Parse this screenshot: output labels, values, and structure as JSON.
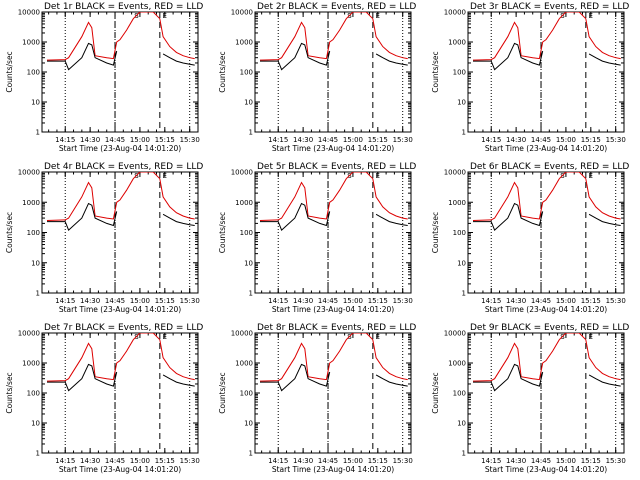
{
  "figure": {
    "x_tick_labels": [
      "14:15",
      "14:30",
      "14:45",
      "15:00",
      "15:15",
      "15:30"
    ],
    "y_tick_labels": [
      "1",
      "10",
      "100",
      "1000",
      "10000"
    ],
    "xlabel": "Start Time (23-Aug-04 14:01:20)",
    "ylabel": "Counts/sec"
  },
  "chart_data": [
    {
      "type": "line",
      "title": "Det 1r BLACK = Events, RED = LLD",
      "xlabel": "Start Time (23-Aug-04 14:01:20)",
      "ylabel": "Counts/sec",
      "yscale": "log",
      "ylim": [
        1,
        10000
      ],
      "x_ticks": [
        "14:15",
        "14:30",
        "14:45",
        "15:00",
        "15:15",
        "15:30"
      ],
      "vlines_dotted": [
        "14:15",
        "14:45",
        "15:30"
      ],
      "vlines_dashed": [
        "14:45",
        "15:12"
      ],
      "markers": [
        "S",
        "E"
      ],
      "x": [
        "14:04",
        "14:15",
        "14:17",
        "14:25",
        "14:29",
        "14:31",
        "14:33",
        "14:40",
        "14:44",
        "14:46",
        "14:48",
        "14:52",
        "14:56",
        "15:00",
        "15:04",
        "15:08",
        "15:12",
        "15:14",
        "15:18",
        "15:22",
        "15:26",
        "15:30",
        "15:33"
      ],
      "series": [
        {
          "name": "BLACK = Events",
          "color": "#000000",
          "values": [
            230,
            230,
            120,
            300,
            900,
            800,
            300,
            200,
            170,
            500,
            "",
            "",
            "",
            "",
            "",
            "",
            "",
            400,
            300,
            230,
            200,
            180,
            170
          ]
        },
        {
          "name": "RED = LLD",
          "color": "#dd0000",
          "values": [
            250,
            260,
            300,
            1500,
            4500,
            3000,
            350,
            300,
            280,
            1000,
            1200,
            2500,
            6000,
            10000,
            10000,
            10000,
            6000,
            1500,
            700,
            450,
            350,
            300,
            280
          ]
        }
      ]
    },
    {
      "type": "line",
      "title": "Det 2r BLACK = Events, RED = LLD",
      "xlabel": "Start Time (23-Aug-04 14:01:20)",
      "ylabel": "Counts/sec",
      "yscale": "log",
      "ylim": [
        1,
        10000
      ],
      "x_ticks": [
        "14:15",
        "14:30",
        "14:45",
        "15:00",
        "15:15",
        "15:30"
      ],
      "vlines_dotted": [
        "14:15",
        "14:45",
        "15:30"
      ],
      "vlines_dashed": [
        "14:45",
        "15:12"
      ],
      "markers": [
        "S",
        "E"
      ],
      "x": [
        "14:04",
        "14:15",
        "14:17",
        "14:25",
        "14:29",
        "14:31",
        "14:33",
        "14:40",
        "14:44",
        "14:46",
        "14:48",
        "14:52",
        "14:56",
        "15:00",
        "15:04",
        "15:08",
        "15:12",
        "15:14",
        "15:18",
        "15:22",
        "15:26",
        "15:30",
        "15:33"
      ],
      "series": [
        {
          "name": "BLACK = Events",
          "color": "#000000",
          "values": [
            230,
            230,
            120,
            300,
            900,
            800,
            300,
            200,
            170,
            500,
            "",
            "",
            "",
            "",
            "",
            "",
            "",
            400,
            300,
            230,
            200,
            180,
            170
          ]
        },
        {
          "name": "RED = LLD",
          "color": "#dd0000",
          "values": [
            250,
            260,
            300,
            1500,
            4500,
            3000,
            350,
            300,
            280,
            1000,
            1200,
            2500,
            6000,
            10000,
            10000,
            10000,
            6000,
            1500,
            700,
            450,
            350,
            300,
            280
          ]
        }
      ]
    },
    {
      "type": "line",
      "title": "Det 3r BLACK = Events, RED = LLD",
      "xlabel": "Start Time (23-Aug-04 14:01:20)",
      "ylabel": "Counts/sec",
      "yscale": "log",
      "ylim": [
        1,
        10000
      ],
      "x_ticks": [
        "14:15",
        "14:30",
        "14:45",
        "15:00",
        "15:15",
        "15:30"
      ],
      "vlines_dotted": [
        "14:15",
        "14:45",
        "15:30"
      ],
      "vlines_dashed": [
        "14:45",
        "15:12"
      ],
      "markers": [
        "S",
        "E"
      ],
      "x": [
        "14:04",
        "14:15",
        "14:17",
        "14:25",
        "14:29",
        "14:31",
        "14:33",
        "14:40",
        "14:44",
        "14:46",
        "14:48",
        "14:52",
        "14:56",
        "15:00",
        "15:04",
        "15:08",
        "15:12",
        "15:14",
        "15:18",
        "15:22",
        "15:26",
        "15:30",
        "15:33"
      ],
      "series": [
        {
          "name": "BLACK = Events",
          "color": "#000000",
          "values": [
            230,
            230,
            120,
            300,
            900,
            800,
            300,
            200,
            170,
            500,
            "",
            "",
            "",
            "",
            "",
            "",
            "",
            400,
            300,
            230,
            200,
            180,
            170
          ]
        },
        {
          "name": "RED = LLD",
          "color": "#dd0000",
          "values": [
            250,
            260,
            300,
            1500,
            4500,
            3000,
            350,
            300,
            280,
            1000,
            1200,
            2500,
            6000,
            10000,
            10000,
            10000,
            6000,
            1500,
            700,
            450,
            350,
            300,
            280
          ]
        }
      ]
    },
    {
      "type": "line",
      "title": "Det 4r BLACK = Events, RED = LLD",
      "xlabel": "Start Time (23-Aug-04 14:01:20)",
      "ylabel": "Counts/sec",
      "yscale": "log",
      "ylim": [
        1,
        10000
      ],
      "x_ticks": [
        "14:15",
        "14:30",
        "14:45",
        "15:00",
        "15:15",
        "15:30"
      ],
      "vlines_dotted": [
        "14:15",
        "14:45",
        "15:30"
      ],
      "vlines_dashed": [
        "14:45",
        "15:12"
      ],
      "markers": [
        "S",
        "E"
      ],
      "x": [
        "14:04",
        "14:15",
        "14:17",
        "14:25",
        "14:29",
        "14:31",
        "14:33",
        "14:40",
        "14:44",
        "14:46",
        "14:48",
        "14:52",
        "14:56",
        "15:00",
        "15:04",
        "15:08",
        "15:12",
        "15:14",
        "15:18",
        "15:22",
        "15:26",
        "15:30",
        "15:33"
      ],
      "series": [
        {
          "name": "BLACK = Events",
          "color": "#000000",
          "values": [
            230,
            230,
            120,
            300,
            900,
            800,
            300,
            200,
            170,
            500,
            "",
            "",
            "",
            "",
            "",
            "",
            "",
            400,
            300,
            230,
            200,
            180,
            170
          ]
        },
        {
          "name": "RED = LLD",
          "color": "#dd0000",
          "values": [
            250,
            260,
            300,
            1500,
            4500,
            3000,
            350,
            300,
            280,
            1000,
            1200,
            2500,
            6000,
            10000,
            10000,
            10000,
            6000,
            1500,
            700,
            450,
            350,
            300,
            280
          ]
        }
      ]
    },
    {
      "type": "line",
      "title": "Det 5r BLACK = Events, RED = LLD",
      "xlabel": "Start Time (23-Aug-04 14:01:20)",
      "ylabel": "Counts/sec",
      "yscale": "log",
      "ylim": [
        1,
        10000
      ],
      "x_ticks": [
        "14:15",
        "14:30",
        "14:45",
        "15:00",
        "15:15",
        "15:30"
      ],
      "vlines_dotted": [
        "14:15",
        "14:45",
        "15:30"
      ],
      "vlines_dashed": [
        "14:45",
        "15:12"
      ],
      "markers": [
        "S",
        "E"
      ],
      "x": [
        "14:04",
        "14:15",
        "14:17",
        "14:25",
        "14:29",
        "14:31",
        "14:33",
        "14:40",
        "14:44",
        "14:46",
        "14:48",
        "14:52",
        "14:56",
        "15:00",
        "15:04",
        "15:08",
        "15:12",
        "15:14",
        "15:18",
        "15:22",
        "15:26",
        "15:30",
        "15:33"
      ],
      "series": [
        {
          "name": "BLACK = Events",
          "color": "#000000",
          "values": [
            230,
            230,
            120,
            300,
            900,
            800,
            300,
            200,
            170,
            500,
            "",
            "",
            "",
            "",
            "",
            "",
            "",
            400,
            300,
            230,
            200,
            180,
            170
          ]
        },
        {
          "name": "RED = LLD",
          "color": "#dd0000",
          "values": [
            250,
            260,
            300,
            1500,
            4500,
            3000,
            350,
            300,
            280,
            1000,
            1200,
            2500,
            6000,
            10000,
            10000,
            10000,
            6000,
            1500,
            700,
            450,
            350,
            300,
            280
          ]
        }
      ]
    },
    {
      "type": "line",
      "title": "Det 6r BLACK = Events, RED = LLD",
      "xlabel": "Start Time (23-Aug-04 14:01:20)",
      "ylabel": "Counts/sec",
      "yscale": "log",
      "ylim": [
        1,
        10000
      ],
      "x_ticks": [
        "14:15",
        "14:30",
        "14:45",
        "15:00",
        "15:15",
        "15:30"
      ],
      "vlines_dotted": [
        "14:15",
        "14:45",
        "15:30"
      ],
      "vlines_dashed": [
        "14:45",
        "15:12"
      ],
      "markers": [
        "S",
        "E"
      ],
      "x": [
        "14:04",
        "14:15",
        "14:17",
        "14:25",
        "14:29",
        "14:31",
        "14:33",
        "14:40",
        "14:44",
        "14:46",
        "14:48",
        "14:52",
        "14:56",
        "15:00",
        "15:04",
        "15:08",
        "15:12",
        "15:14",
        "15:18",
        "15:22",
        "15:26",
        "15:30",
        "15:33"
      ],
      "series": [
        {
          "name": "BLACK = Events",
          "color": "#000000",
          "values": [
            230,
            230,
            120,
            300,
            900,
            800,
            300,
            200,
            170,
            500,
            "",
            "",
            "",
            "",
            "",
            "",
            "",
            400,
            300,
            230,
            200,
            180,
            170
          ]
        },
        {
          "name": "RED = LLD",
          "color": "#dd0000",
          "values": [
            250,
            260,
            300,
            1500,
            4500,
            3000,
            350,
            300,
            280,
            1000,
            1200,
            2500,
            6000,
            10000,
            10000,
            10000,
            6000,
            1500,
            700,
            450,
            350,
            300,
            280
          ]
        }
      ]
    },
    {
      "type": "line",
      "title": "Det 7r BLACK = Events, RED = LLD",
      "xlabel": "Start Time (23-Aug-04 14:01:20)",
      "ylabel": "Counts/sec",
      "yscale": "log",
      "ylim": [
        1,
        10000
      ],
      "x_ticks": [
        "14:15",
        "14:30",
        "14:45",
        "15:00",
        "15:15",
        "15:30"
      ],
      "vlines_dotted": [
        "14:15",
        "14:45",
        "15:30"
      ],
      "vlines_dashed": [
        "14:45",
        "15:12"
      ],
      "markers": [
        "S",
        "E"
      ],
      "x": [
        "14:04",
        "14:15",
        "14:17",
        "14:25",
        "14:29",
        "14:31",
        "14:33",
        "14:40",
        "14:44",
        "14:46",
        "14:48",
        "14:52",
        "14:56",
        "15:00",
        "15:04",
        "15:08",
        "15:12",
        "15:14",
        "15:18",
        "15:22",
        "15:26",
        "15:30",
        "15:33"
      ],
      "series": [
        {
          "name": "BLACK = Events",
          "color": "#000000",
          "values": [
            230,
            230,
            120,
            300,
            900,
            800,
            300,
            200,
            170,
            500,
            "",
            "",
            "",
            "",
            "",
            "",
            "",
            400,
            300,
            230,
            200,
            180,
            170
          ]
        },
        {
          "name": "RED = LLD",
          "color": "#dd0000",
          "values": [
            250,
            260,
            300,
            1500,
            4500,
            3000,
            350,
            300,
            280,
            1000,
            1200,
            2500,
            6000,
            10000,
            10000,
            10000,
            6000,
            1500,
            700,
            450,
            350,
            300,
            280
          ]
        }
      ]
    },
    {
      "type": "line",
      "title": "Det 8r BLACK = Events, RED = LLD",
      "xlabel": "Start Time (23-Aug-04 14:01:20)",
      "ylabel": "Counts/sec",
      "yscale": "log",
      "ylim": [
        1,
        10000
      ],
      "x_ticks": [
        "14:15",
        "14:30",
        "14:45",
        "15:00",
        "15:15",
        "15:30"
      ],
      "vlines_dotted": [
        "14:15",
        "14:45",
        "15:30"
      ],
      "vlines_dashed": [
        "14:45",
        "15:12"
      ],
      "markers": [
        "S",
        "E"
      ],
      "x": [
        "14:04",
        "14:15",
        "14:17",
        "14:25",
        "14:29",
        "14:31",
        "14:33",
        "14:40",
        "14:44",
        "14:46",
        "14:48",
        "14:52",
        "14:56",
        "15:00",
        "15:04",
        "15:08",
        "15:12",
        "15:14",
        "15:18",
        "15:22",
        "15:26",
        "15:30",
        "15:33"
      ],
      "series": [
        {
          "name": "BLACK = Events",
          "color": "#000000",
          "values": [
            230,
            230,
            120,
            300,
            900,
            800,
            300,
            200,
            170,
            500,
            "",
            "",
            "",
            "",
            "",
            "",
            "",
            400,
            300,
            230,
            200,
            180,
            170
          ]
        },
        {
          "name": "RED = LLD",
          "color": "#dd0000",
          "values": [
            250,
            260,
            300,
            1500,
            4500,
            3000,
            350,
            300,
            280,
            1000,
            1200,
            2500,
            6000,
            10000,
            10000,
            10000,
            6000,
            1500,
            700,
            450,
            350,
            300,
            280
          ]
        }
      ]
    },
    {
      "type": "line",
      "title": "Det 9r BLACK = Events, RED = LLD",
      "xlabel": "Start Time (23-Aug-04 14:01:20)",
      "ylabel": "Counts/sec",
      "yscale": "log",
      "ylim": [
        1,
        10000
      ],
      "x_ticks": [
        "14:15",
        "14:30",
        "14:45",
        "15:00",
        "15:15",
        "15:30"
      ],
      "vlines_dotted": [
        "14:15",
        "14:45",
        "15:30"
      ],
      "vlines_dashed": [
        "14:45",
        "15:12"
      ],
      "markers": [
        "S",
        "E"
      ],
      "x": [
        "14:04",
        "14:15",
        "14:17",
        "14:25",
        "14:29",
        "14:31",
        "14:33",
        "14:40",
        "14:44",
        "14:46",
        "14:48",
        "14:52",
        "14:56",
        "15:00",
        "15:04",
        "15:08",
        "15:12",
        "15:14",
        "15:18",
        "15:22",
        "15:26",
        "15:30",
        "15:33"
      ],
      "series": [
        {
          "name": "BLACK = Events",
          "color": "#000000",
          "values": [
            230,
            230,
            120,
            300,
            900,
            800,
            300,
            200,
            170,
            500,
            "",
            "",
            "",
            "",
            "",
            "",
            "",
            400,
            300,
            230,
            200,
            180,
            170
          ]
        },
        {
          "name": "RED = LLD",
          "color": "#dd0000",
          "values": [
            250,
            260,
            300,
            1500,
            4500,
            3000,
            350,
            300,
            280,
            1000,
            1200,
            2500,
            6000,
            10000,
            10000,
            10000,
            6000,
            1500,
            700,
            450,
            350,
            300,
            280
          ]
        }
      ]
    }
  ]
}
